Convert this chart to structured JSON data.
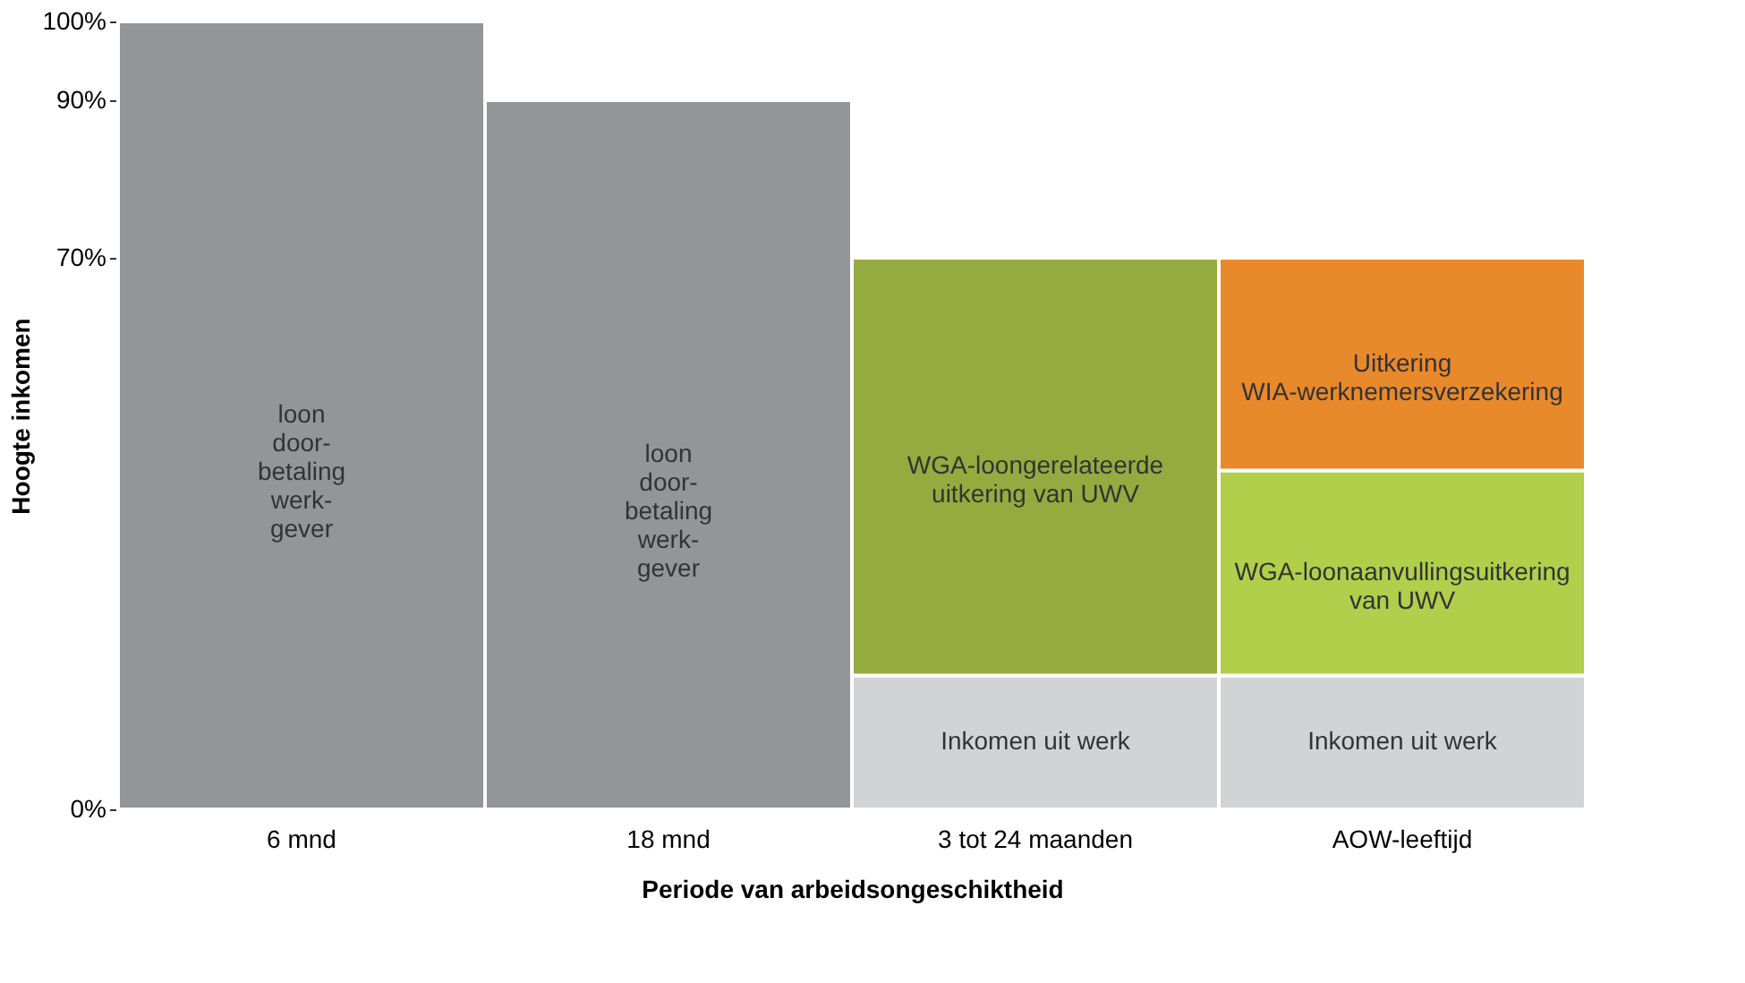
{
  "chart_data": {
    "type": "bar",
    "stacked": true,
    "xlabel": "Periode van arbeidsongeschiktheid",
    "ylabel": "Hoogte inkomen",
    "categories": [
      "6 mnd",
      "18 mnd",
      "3 tot 24 maanden",
      "AOW-leeftijd"
    ],
    "series": [
      {
        "name": "loon\ndoor-\nbetaling\nwerk-\ngever",
        "color": "#939598",
        "values": [
          100,
          90,
          null,
          null
        ]
      },
      {
        "name": "Inkomen uit werk",
        "color": "#d1d3d4",
        "values": [
          null,
          null,
          17,
          17
        ]
      },
      {
        "name": "WGA-loongerelateerde\nuitkering van UWV",
        "color": "#95ab3f",
        "values": [
          null,
          null,
          53,
          null
        ]
      },
      {
        "name": "WGA-loonaanvullingsuitkering\nvan UWV",
        "color": "#b1cf4a",
        "values": [
          null,
          null,
          null,
          26
        ]
      },
      {
        "name": "Uitkering\nWIA-werknemersverzekering",
        "color": "#e8892b",
        "values": [
          null,
          null,
          null,
          27
        ]
      }
    ],
    "ylim": [
      0,
      100
    ],
    "yticks": [
      {
        "value": 0,
        "label": "0%"
      },
      {
        "value": 70,
        "label": "70%"
      },
      {
        "value": 90,
        "label": "90%"
      },
      {
        "value": 100,
        "label": "100%"
      }
    ],
    "grid": false,
    "legend": false
  }
}
